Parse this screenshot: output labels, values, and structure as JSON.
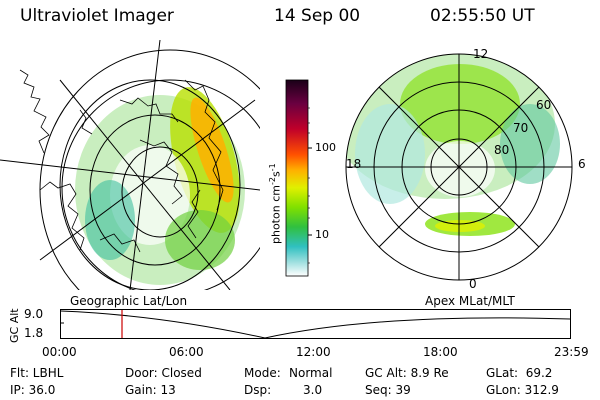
{
  "header": {
    "instrument": "Ultraviolet Imager",
    "date": "14 Sep 00",
    "time": "02:55:50 UT"
  },
  "colorbar": {
    "unit_label": "photon cm",
    "tick_labels": [
      "100",
      "10"
    ],
    "colors": [
      "#1a0018",
      "#6a0040",
      "#c0002a",
      "#ff5000",
      "#ffb000",
      "#e0f000",
      "#80e000",
      "#30c040",
      "#30c0c0",
      "#a0e0e0",
      "#ffffff"
    ]
  },
  "left_map": {
    "caption": "Geographic Lat/Lon"
  },
  "right_map": {
    "caption": "Apex MLat/MLT",
    "lat_labels": [
      "60",
      "70",
      "80"
    ],
    "mlt_labels": [
      "12",
      "18",
      "6",
      "0"
    ]
  },
  "timeline": {
    "axis_label": "GC Alt",
    "y_ticks": [
      "9.0",
      "1.8"
    ],
    "x_ticks": [
      "00:00",
      "06:00",
      "12:00",
      "18:00",
      "23:59"
    ],
    "marker_color": "#cc0000"
  },
  "meta": {
    "filter": "Flt: LBHL",
    "ip": "IP: 36.0",
    "door": "Door: Closed",
    "gain": "Gain: 13",
    "mode_label": "Mode:",
    "mode_value": "Normal",
    "dsp_label": "Dsp:",
    "dsp_value": "3.0",
    "gc_alt": "GC Alt: 8.9 Re",
    "seq": "Seq: 39",
    "glat": "GLat:  69.2",
    "glon": "GLon: 312.9"
  }
}
